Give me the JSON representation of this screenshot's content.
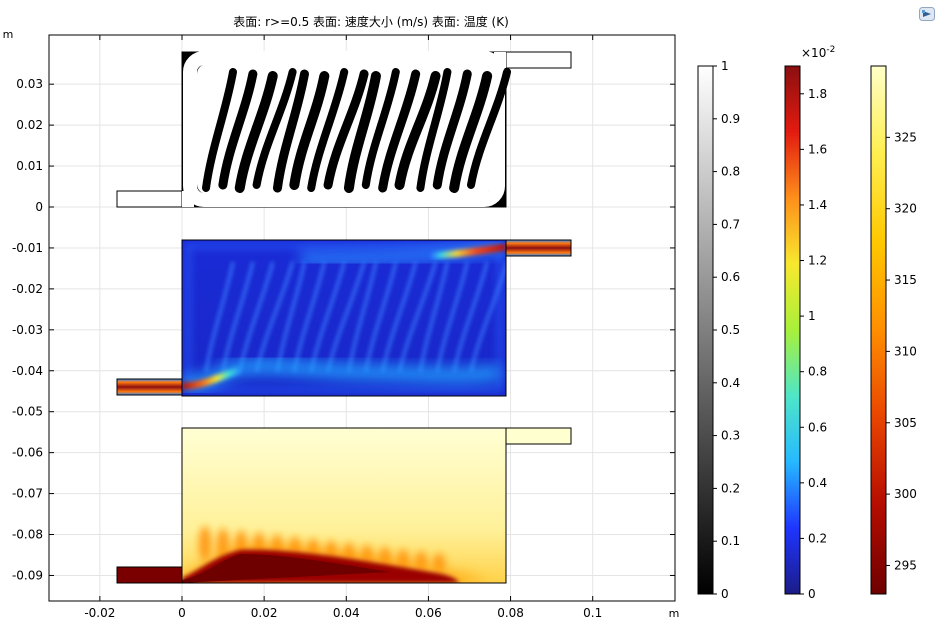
{
  "header": {
    "title": "表面: r>=0.5  表面: 速度大小 (m/s)  表面: 温度 (K)"
  },
  "toolbar": {
    "icon": "comsol-logo-icon"
  },
  "chart_data": {
    "type": "heatmap",
    "title": "表面: r>=0.5  表面: 速度大小 (m/s)  表面: 温度 (K)",
    "x_unit": "m",
    "y_unit": "m",
    "xlim": [
      -0.032,
      0.12
    ],
    "ylim": [
      -0.096,
      0.041
    ],
    "x_ticks": [
      {
        "value": -0.02,
        "label": "-0.02"
      },
      {
        "value": 0,
        "label": "0"
      },
      {
        "value": 0.02,
        "label": "0.02"
      },
      {
        "value": 0.04,
        "label": "0.04"
      },
      {
        "value": 0.06,
        "label": "0.06"
      },
      {
        "value": 0.08,
        "label": "0.08"
      },
      {
        "value": 0.1,
        "label": "0.1"
      }
    ],
    "y_ticks": [
      {
        "value": 0.03,
        "label": "0.03"
      },
      {
        "value": 0.02,
        "label": "0.02"
      },
      {
        "value": 0.01,
        "label": "0.01"
      },
      {
        "value": 0,
        "label": "0"
      },
      {
        "value": -0.01,
        "label": "-0.01"
      },
      {
        "value": -0.02,
        "label": "-0.02"
      },
      {
        "value": -0.03,
        "label": "-0.03"
      },
      {
        "value": -0.04,
        "label": "-0.04"
      },
      {
        "value": -0.05,
        "label": "-0.05"
      },
      {
        "value": -0.06,
        "label": "-0.06"
      },
      {
        "value": -0.07,
        "label": "-0.07"
      },
      {
        "value": -0.08,
        "label": "-0.08"
      },
      {
        "value": -0.09,
        "label": "-0.09"
      }
    ],
    "grid": true,
    "panels": [
      {
        "name": "表面: r>=0.5",
        "domain_x": [
          0,
          0.079
        ],
        "domain_y": [
          0,
          0.038
        ],
        "inlet": {
          "x": [
            -0.016,
            0
          ],
          "y": [
            0,
            0.004
          ]
        },
        "outlet": {
          "x": [
            0.079,
            0.095
          ],
          "y": [
            0.034,
            0.038
          ]
        },
        "channel_count": 16
      },
      {
        "name": "表面: 速度大小 (m/s)",
        "domain_x": [
          0,
          0.079
        ],
        "domain_y": [
          -0.046,
          -0.008
        ],
        "inlet": {
          "x": [
            -0.016,
            0
          ],
          "y": [
            -0.046,
            -0.042
          ]
        },
        "outlet": {
          "x": [
            0.079,
            0.095
          ],
          "y": [
            -0.012,
            -0.008
          ]
        },
        "max_value": 0.019
      },
      {
        "name": "表面: 温度 (K)",
        "domain_x": [
          0,
          0.079
        ],
        "domain_y": [
          -0.092,
          -0.054
        ],
        "inlet": {
          "x": [
            -0.016,
            0
          ],
          "y": [
            -0.092,
            -0.088
          ]
        },
        "outlet": {
          "x": [
            0.079,
            0.095
          ],
          "y": [
            -0.058,
            -0.054
          ]
        },
        "min_value": 293,
        "max_value": 330
      }
    ],
    "colorbars": [
      {
        "name": "gray",
        "range": [
          0,
          1
        ],
        "colors": [
          "#000000",
          "#ffffff"
        ],
        "exponent_label": "",
        "ticks": [
          {
            "value": 0,
            "label": "0"
          },
          {
            "value": 0.1,
            "label": "0.1"
          },
          {
            "value": 0.2,
            "label": "0.2"
          },
          {
            "value": 0.3,
            "label": "0.3"
          },
          {
            "value": 0.4,
            "label": "0.4"
          },
          {
            "value": 0.5,
            "label": "0.5"
          },
          {
            "value": 0.6,
            "label": "0.6"
          },
          {
            "value": 0.7,
            "label": "0.7"
          },
          {
            "value": 0.8,
            "label": "0.8"
          },
          {
            "value": 0.9,
            "label": "0.9"
          },
          {
            "value": 1,
            "label": "1"
          }
        ]
      },
      {
        "name": "rainbow",
        "range": [
          0,
          1.9
        ],
        "colors": [
          "#1c1c86",
          "#1f35ff",
          "#26b9ff",
          "#4fe6c8",
          "#a8f03a",
          "#f8e82e",
          "#fd8f1b",
          "#e31b10",
          "#8a0f10"
        ],
        "exponent_label": "×10^-2",
        "ticks": [
          {
            "value": 0,
            "label": "0"
          },
          {
            "value": 0.2,
            "label": "0.2"
          },
          {
            "value": 0.4,
            "label": "0.4"
          },
          {
            "value": 0.6,
            "label": "0.6"
          },
          {
            "value": 0.8,
            "label": "0.8"
          },
          {
            "value": 1,
            "label": "1"
          },
          {
            "value": 1.2,
            "label": "1.2"
          },
          {
            "value": 1.4,
            "label": "1.4"
          },
          {
            "value": 1.6,
            "label": "1.6"
          },
          {
            "value": 1.8,
            "label": "1.8"
          }
        ]
      },
      {
        "name": "thermal",
        "range": [
          293,
          330
        ],
        "colors": [
          "#6e0000",
          "#b40c00",
          "#e84400",
          "#ff8e00",
          "#ffc800",
          "#ffee50",
          "#ffffc8"
        ],
        "exponent_label": "",
        "ticks": [
          {
            "value": 295,
            "label": "295"
          },
          {
            "value": 300,
            "label": "300"
          },
          {
            "value": 305,
            "label": "305"
          },
          {
            "value": 310,
            "label": "310"
          },
          {
            "value": 315,
            "label": "315"
          },
          {
            "value": 320,
            "label": "320"
          },
          {
            "value": 325,
            "label": "325"
          }
        ]
      }
    ]
  }
}
